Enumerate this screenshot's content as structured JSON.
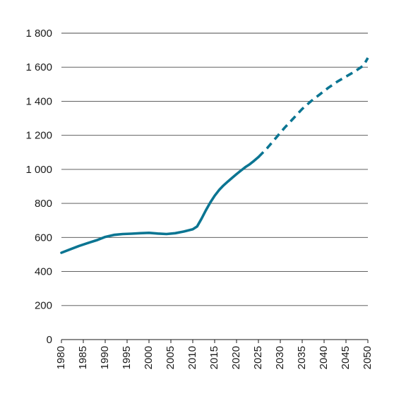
{
  "colors": {
    "series": "#0b7592",
    "grid": "#4a4a4a",
    "text": "#1a1a1a"
  },
  "chart_data": {
    "type": "line",
    "title": "",
    "xlabel": "",
    "ylabel": "",
    "xlim": [
      1980,
      2050
    ],
    "ylim": [
      0,
      1800
    ],
    "grid": "horizontal",
    "legend": "none",
    "yticks": [
      {
        "value": 0,
        "label": "0"
      },
      {
        "value": 200,
        "label": "200"
      },
      {
        "value": 400,
        "label": "400"
      },
      {
        "value": 600,
        "label": "600"
      },
      {
        "value": 800,
        "label": "800"
      },
      {
        "value": 1000,
        "label": "1 000"
      },
      {
        "value": 1200,
        "label": "1 200"
      },
      {
        "value": 1400,
        "label": "1 400"
      },
      {
        "value": 1600,
        "label": "1 600"
      },
      {
        "value": 1800,
        "label": "1 800"
      }
    ],
    "xticks": [
      {
        "value": 1980,
        "label": "1980"
      },
      {
        "value": 1985,
        "label": "1985"
      },
      {
        "value": 1990,
        "label": "1990"
      },
      {
        "value": 1995,
        "label": "1995"
      },
      {
        "value": 2000,
        "label": "2000"
      },
      {
        "value": 2005,
        "label": "2005"
      },
      {
        "value": 2010,
        "label": "2010"
      },
      {
        "value": 2015,
        "label": "2015"
      },
      {
        "value": 2020,
        "label": "2020"
      },
      {
        "value": 2025,
        "label": "2025"
      },
      {
        "value": 2030,
        "label": "2030"
      },
      {
        "value": 2035,
        "label": "2035"
      },
      {
        "value": 2040,
        "label": "2040"
      },
      {
        "value": 2045,
        "label": "2045"
      },
      {
        "value": 2050,
        "label": "2050"
      }
    ],
    "series": [
      {
        "style": "solid",
        "points": [
          [
            1980,
            510
          ],
          [
            1982,
            530
          ],
          [
            1984,
            550
          ],
          [
            1986,
            567
          ],
          [
            1988,
            583
          ],
          [
            1990,
            603
          ],
          [
            1992,
            615
          ],
          [
            1994,
            620
          ],
          [
            1996,
            622
          ],
          [
            1998,
            625
          ],
          [
            2000,
            627
          ],
          [
            2002,
            623
          ],
          [
            2004,
            620
          ],
          [
            2006,
            625
          ],
          [
            2008,
            635
          ],
          [
            2010,
            648
          ],
          [
            2011,
            665
          ],
          [
            2012,
            710
          ],
          [
            2013,
            760
          ],
          [
            2014,
            805
          ],
          [
            2015,
            845
          ],
          [
            2016,
            878
          ],
          [
            2017,
            905
          ],
          [
            2018,
            928
          ],
          [
            2019,
            950
          ],
          [
            2020,
            972
          ],
          [
            2021,
            993
          ],
          [
            2022,
            1013
          ],
          [
            2023,
            1030
          ],
          [
            2024,
            1050
          ],
          [
            2025,
            1072
          ]
        ]
      },
      {
        "style": "dashed",
        "points": [
          [
            2025,
            1072
          ],
          [
            2027,
            1125
          ],
          [
            2029,
            1185
          ],
          [
            2031,
            1245
          ],
          [
            2033,
            1300
          ],
          [
            2035,
            1355
          ],
          [
            2037,
            1400
          ],
          [
            2039,
            1440
          ],
          [
            2041,
            1480
          ],
          [
            2043,
            1515
          ],
          [
            2045,
            1545
          ],
          [
            2047,
            1575
          ],
          [
            2049,
            1610
          ],
          [
            2050,
            1655
          ]
        ]
      }
    ]
  }
}
